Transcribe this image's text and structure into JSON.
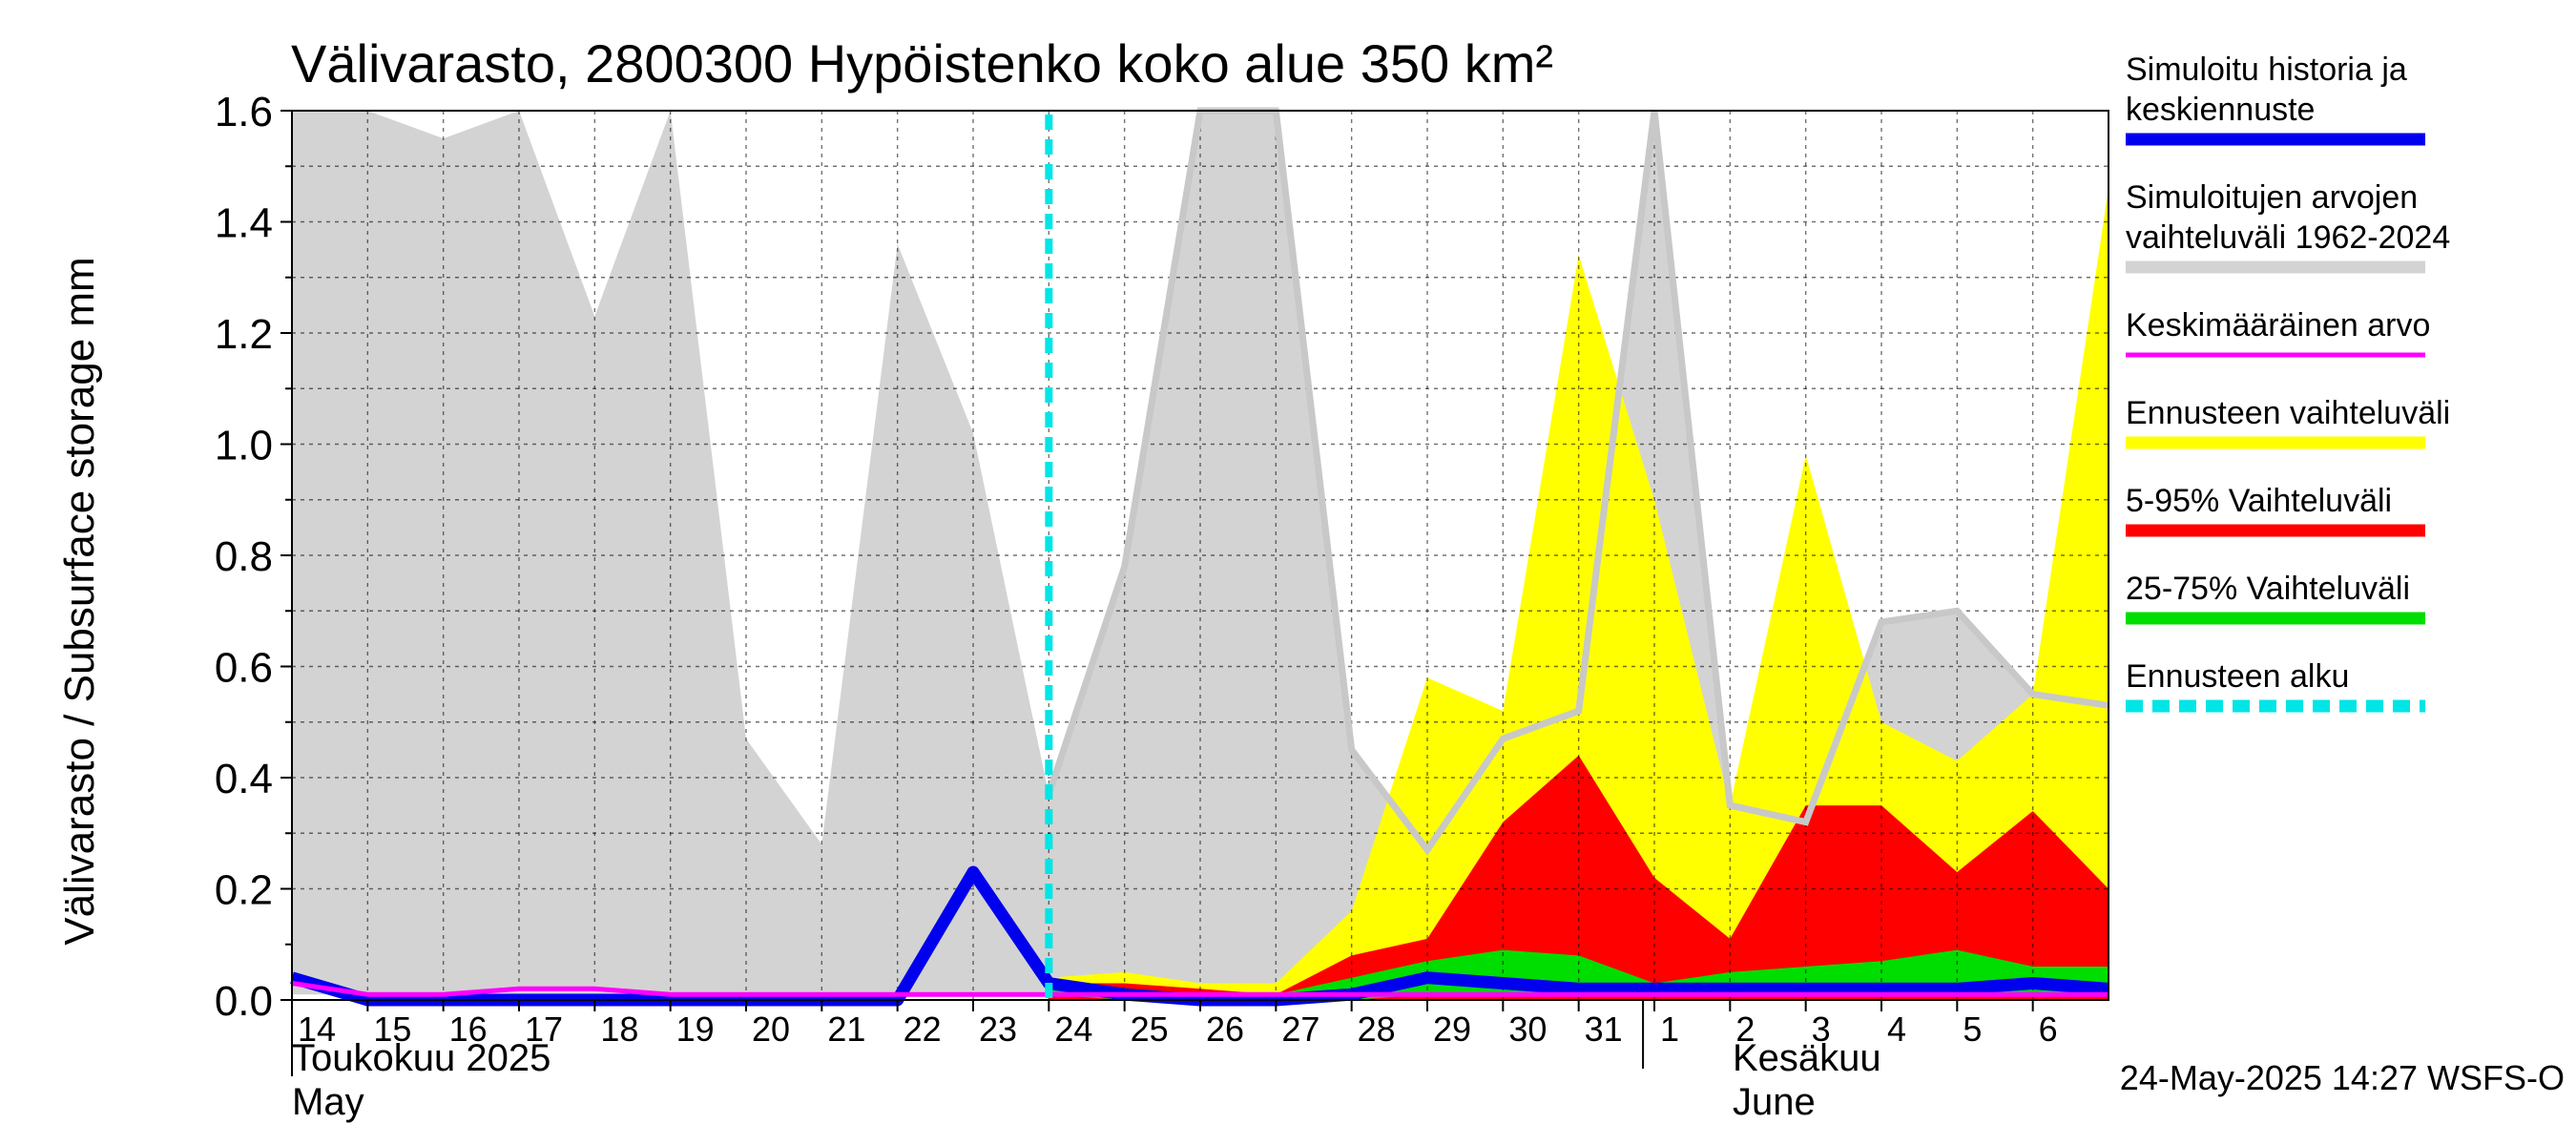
{
  "chart_data": {
    "type": "area",
    "title": "Välivarasto, 2800300 Hypöistenko koko alue 350 km²",
    "ylabel": "Välivarasto / Subsurface storage  mm",
    "ylim": [
      0,
      1.6
    ],
    "yticks": [
      "0.0",
      "0.2",
      "0.4",
      "0.6",
      "0.8",
      "1.0",
      "1.2",
      "1.4",
      "1.6"
    ],
    "grid": true,
    "legend_position": "right",
    "xticks": [
      "14",
      "15",
      "16",
      "17",
      "18",
      "19",
      "20",
      "21",
      "22",
      "23",
      "24",
      "25",
      "26",
      "27",
      "28",
      "29",
      "30",
      "31",
      "1",
      "2",
      "3",
      "4",
      "5",
      "6"
    ],
    "month_labels": {
      "may_fi": "Toukokuu  2025",
      "may_en": "May",
      "june_fi": "Kesäkuu",
      "june_en": "June"
    },
    "forecast_start_day": 24,
    "timestamp": "24-May-2025 14:27 WSFS-O",
    "x_days": [
      14,
      15,
      16,
      17,
      18,
      19,
      20,
      21,
      22,
      23,
      24,
      25,
      26,
      27,
      28,
      29,
      30,
      31,
      32,
      33,
      34,
      35,
      36,
      37,
      38
    ],
    "series": [
      {
        "name": "Simuloitujen arvojen vaihteluväli 1962-2024",
        "kind": "band",
        "color": "#d3d3d3",
        "low": [
          0.01,
          0.01,
          0.01,
          0.01,
          0.01,
          0.01,
          0.01,
          0.01,
          0.01,
          0.01,
          0.01,
          0.01,
          0.01,
          0.01,
          0.01,
          0.01,
          0.01,
          0.01,
          0.01,
          0.01,
          0.01,
          0.01,
          0.01,
          0.01,
          0.01
        ],
        "high": [
          1.6,
          1.6,
          1.55,
          1.6,
          1.23,
          1.6,
          0.47,
          0.28,
          1.36,
          1.02,
          0.37,
          0.78,
          1.6,
          1.6,
          0.45,
          0.27,
          0.47,
          0.52,
          1.6,
          0.35,
          0.32,
          0.68,
          0.7,
          0.55,
          0.53
        ]
      },
      {
        "name": "Ennusteen vaihteluväli",
        "kind": "band",
        "color": "#ffff00",
        "low": [
          null,
          null,
          null,
          null,
          null,
          null,
          null,
          null,
          null,
          null,
          0.0,
          0.0,
          0.0,
          0.0,
          0.0,
          0.0,
          0.0,
          0.0,
          0.0,
          0.0,
          0.0,
          0.0,
          0.0,
          0.0,
          0.0
        ],
        "high": [
          null,
          null,
          null,
          null,
          null,
          null,
          null,
          null,
          null,
          null,
          0.04,
          0.05,
          0.03,
          0.03,
          0.16,
          0.58,
          0.52,
          1.34,
          0.9,
          0.35,
          0.98,
          0.5,
          0.43,
          0.55,
          1.46
        ]
      },
      {
        "name": "5-95% Vaihteluväli",
        "kind": "band",
        "color": "#ff0000",
        "low": [
          null,
          null,
          null,
          null,
          null,
          null,
          null,
          null,
          null,
          null,
          0.0,
          0.0,
          0.0,
          0.0,
          0.0,
          0.0,
          0.0,
          0.0,
          0.0,
          0.0,
          0.0,
          0.0,
          0.0,
          0.0,
          0.0
        ],
        "high": [
          null,
          null,
          null,
          null,
          null,
          null,
          null,
          null,
          null,
          null,
          0.03,
          0.03,
          0.02,
          0.01,
          0.08,
          0.11,
          0.32,
          0.44,
          0.22,
          0.11,
          0.35,
          0.35,
          0.23,
          0.34,
          0.2
        ]
      },
      {
        "name": "25-75% Vaihteluväli",
        "kind": "band",
        "color": "#00dd00",
        "low": [
          null,
          null,
          null,
          null,
          null,
          null,
          null,
          null,
          null,
          null,
          0.01,
          0.0,
          0.0,
          0.0,
          0.0,
          0.01,
          0.01,
          0.01,
          0.01,
          0.01,
          0.01,
          0.01,
          0.01,
          0.01,
          0.01
        ],
        "high": [
          null,
          null,
          null,
          null,
          null,
          null,
          null,
          null,
          null,
          null,
          0.03,
          0.02,
          0.01,
          0.01,
          0.04,
          0.07,
          0.09,
          0.08,
          0.03,
          0.05,
          0.06,
          0.07,
          0.09,
          0.06,
          0.06
        ]
      },
      {
        "name": "Simuloitu historia ja keskiennuste",
        "kind": "line",
        "color": "#0000ee",
        "values": [
          0.04,
          0.0,
          0.0,
          0.0,
          0.0,
          0.0,
          0.0,
          0.0,
          0.0,
          0.23,
          0.03,
          0.01,
          0.0,
          0.0,
          0.01,
          0.04,
          0.03,
          0.02,
          0.02,
          0.02,
          0.02,
          0.02,
          0.02,
          0.03,
          0.02
        ]
      },
      {
        "name": "Keskimääräinen arvo",
        "kind": "line",
        "color": "#ff00ff",
        "values": [
          0.03,
          0.01,
          0.01,
          0.02,
          0.02,
          0.01,
          0.01,
          0.01,
          0.01,
          0.01,
          0.01,
          0.01,
          0.01,
          0.01,
          0.01,
          0.01,
          0.01,
          0.01,
          0.01,
          0.01,
          0.01,
          0.01,
          0.01,
          0.01,
          0.01
        ]
      },
      {
        "name": "Ennusteen alku",
        "kind": "vline",
        "color": "#00e5e5"
      }
    ],
    "legend": [
      {
        "line1": "Simuloitu historia ja",
        "line2": "keskiennuste",
        "color": "#0000ee",
        "style": "thick"
      },
      {
        "line1": "Simuloitujen arvojen",
        "line2": "vaihteluväli 1962-2024",
        "color": "#d3d3d3",
        "style": "thick"
      },
      {
        "line1": "Keskimääräinen arvo",
        "line2": "",
        "color": "#ff00ff",
        "style": "thin"
      },
      {
        "line1": "Ennusteen vaihteluväli",
        "line2": "",
        "color": "#ffff00",
        "style": "thick"
      },
      {
        "line1": "5-95% Vaihteluväli",
        "line2": "",
        "color": "#ff0000",
        "style": "thick"
      },
      {
        "line1": "25-75% Vaihteluväli",
        "line2": "",
        "color": "#00dd00",
        "style": "thick"
      },
      {
        "line1": "Ennusteen alku",
        "line2": "",
        "color": "#00e5e5",
        "style": "dashed"
      }
    ]
  }
}
